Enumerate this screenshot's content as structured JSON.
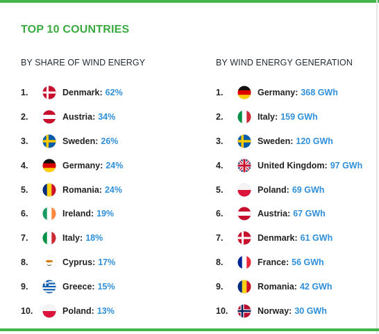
{
  "title": "TOP 10 COUNTRIES",
  "left": {
    "heading": "BY SHARE OF WIND ENERGY",
    "rows": [
      {
        "rank": "1.",
        "country": "Denmark:",
        "value": "62%",
        "flag": "denmark-flag-icon"
      },
      {
        "rank": "2.",
        "country": "Austria:",
        "value": "34%",
        "flag": "austria-flag-icon"
      },
      {
        "rank": "3.",
        "country": "Sweden:",
        "value": "26%",
        "flag": "sweden-flag-icon"
      },
      {
        "rank": "4.",
        "country": "Germany:",
        "value": "24%",
        "flag": "germany-flag-icon"
      },
      {
        "rank": "5.",
        "country": "Romania:",
        "value": "24%",
        "flag": "romania-flag-icon"
      },
      {
        "rank": "6.",
        "country": "Ireland:",
        "value": "19%",
        "flag": "ireland-flag-icon"
      },
      {
        "rank": "7.",
        "country": "Italy:",
        "value": "18%",
        "flag": "italy-flag-icon"
      },
      {
        "rank": "8.",
        "country": "Cyprus:",
        "value": "17%",
        "flag": "cyprus-flag-icon"
      },
      {
        "rank": "9.",
        "country": "Greece:",
        "value": "15%",
        "flag": "greece-flag-icon"
      },
      {
        "rank": "10.",
        "country": "Poland:",
        "value": "13%",
        "flag": "poland-flag-icon"
      }
    ]
  },
  "right": {
    "heading": "BY WIND ENERGY GENERATION",
    "rows": [
      {
        "rank": "1.",
        "country": "Germany:",
        "value": "368 GWh",
        "flag": "germany-flag-icon"
      },
      {
        "rank": "2.",
        "country": "Italy:",
        "value": "159 GWh",
        "flag": "italy-flag-icon"
      },
      {
        "rank": "3.",
        "country": "Sweden:",
        "value": "120 GWh",
        "flag": "sweden-flag-icon"
      },
      {
        "rank": "4.",
        "country": "United Kingdom:",
        "value": "97 GWh",
        "flag": "uk-flag-icon"
      },
      {
        "rank": "5.",
        "country": "Poland:",
        "value": "69 GWh",
        "flag": "poland-flag-icon"
      },
      {
        "rank": "6.",
        "country": "Austria:",
        "value": "67 GWh",
        "flag": "austria-flag-icon"
      },
      {
        "rank": "7.",
        "country": "Denmark:",
        "value": "61 GWh",
        "flag": "denmark-flag-icon"
      },
      {
        "rank": "8.",
        "country": "France:",
        "value": "56 GWh",
        "flag": "france-flag-icon"
      },
      {
        "rank": "9.",
        "country": "Romania:",
        "value": "42 GWh",
        "flag": "romania-flag-icon"
      },
      {
        "rank": "10.",
        "country": "Norway:",
        "value": "30 GWh",
        "flag": "norway-flag-icon"
      }
    ]
  },
  "colors": {
    "accent_green": "#44b649",
    "title_green": "#3aa93f",
    "value_blue": "#2f8fd8",
    "text": "#222222"
  }
}
